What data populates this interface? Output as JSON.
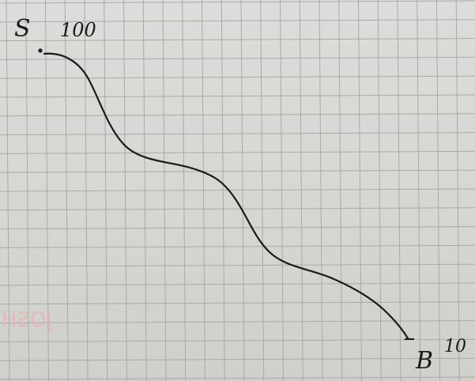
{
  "sketch": {
    "start_label": "S",
    "start_value": "100",
    "end_label": "B",
    "end_value": "10",
    "bleed_through_text": "JOSH",
    "colors": {
      "paper": "#d9d9d6",
      "grid": "#a9aaa7",
      "ink": "#1a1a1a",
      "bleed": "#e7b3b3"
    }
  }
}
